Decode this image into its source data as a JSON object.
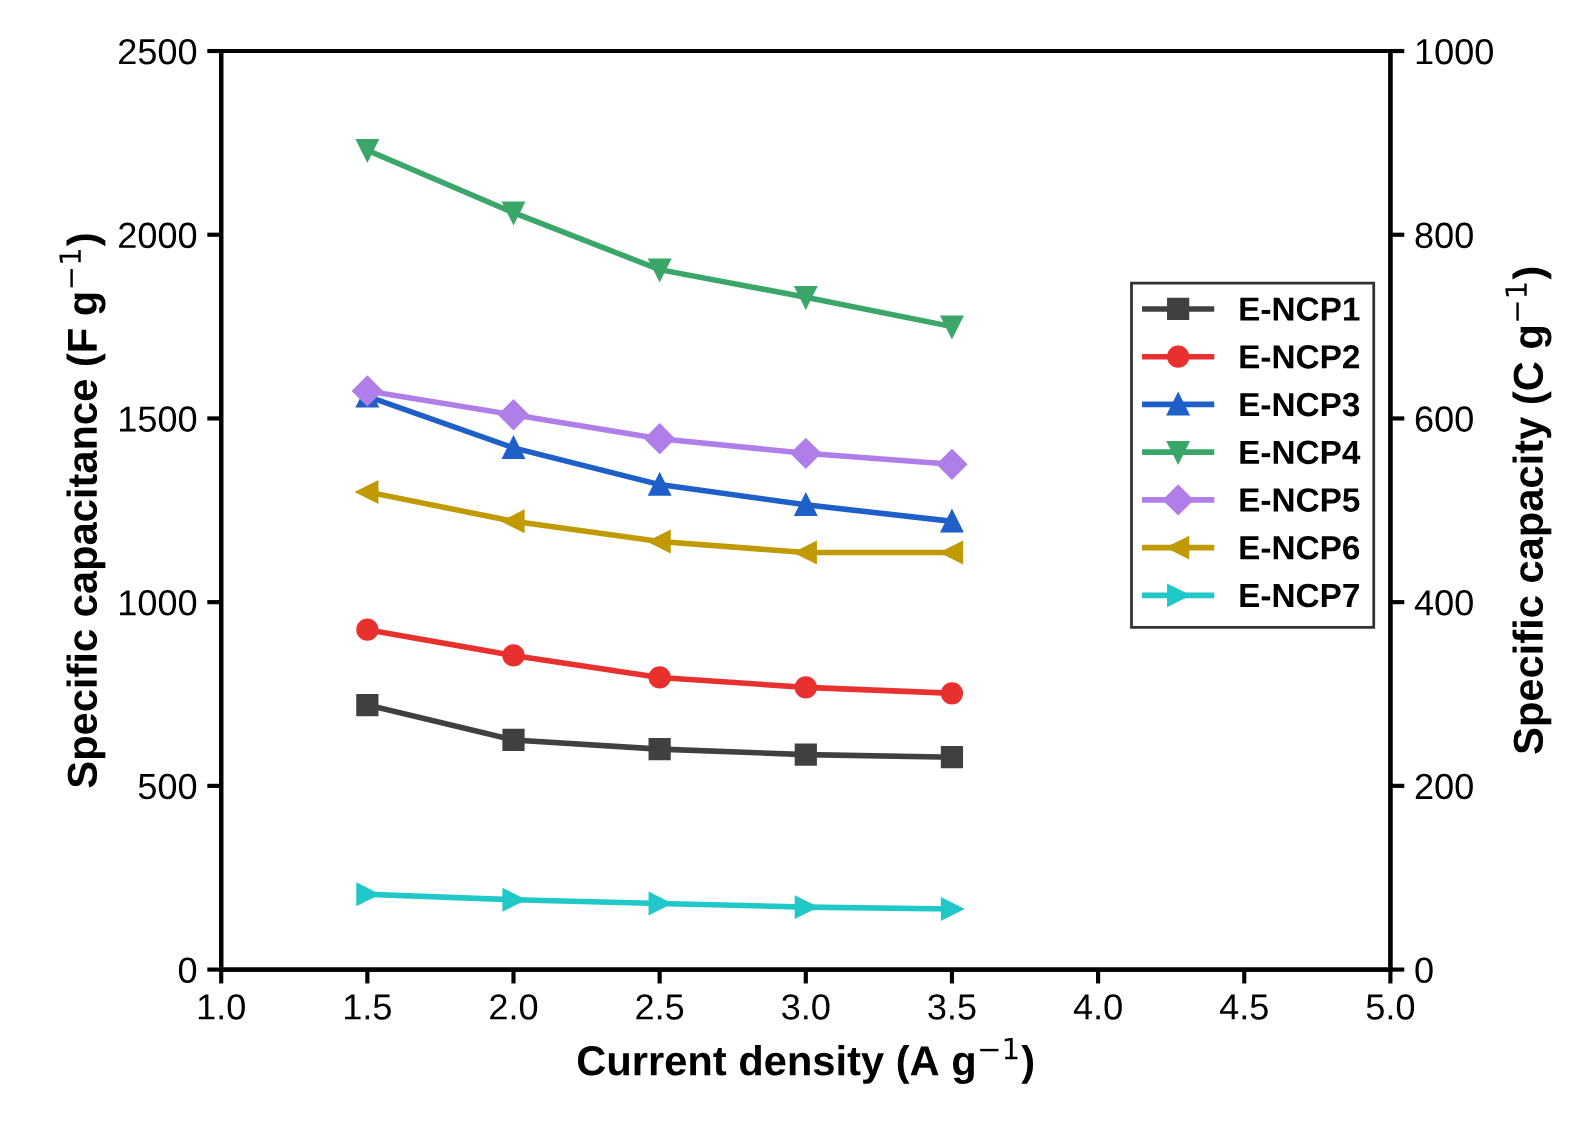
{
  "chart_data": {
    "type": "line",
    "xlabel": "Current density (A g$^{−1}$)",
    "ylabel": "Specific capacitance (F g$^{−1}$)",
    "y2label": "Specific capacity (C g$^{−1}$)",
    "x": [
      1.5,
      2.0,
      2.5,
      3.0,
      3.5
    ],
    "xlim": [
      1.0,
      5.0
    ],
    "xticks": [
      {
        "value": 1.0,
        "label": "1.0"
      },
      {
        "value": 1.5,
        "label": "1.5"
      },
      {
        "value": 2.0,
        "label": "2.0"
      },
      {
        "value": 2.5,
        "label": "2.5"
      },
      {
        "value": 3.0,
        "label": "3.0"
      },
      {
        "value": 3.5,
        "label": "3.5"
      },
      {
        "value": 4.0,
        "label": "4.0"
      },
      {
        "value": 4.5,
        "label": "4.5"
      },
      {
        "value": 5.0,
        "label": "5.0"
      }
    ],
    "ylim": [
      0,
      2500
    ],
    "yticks": [
      0,
      500,
      1000,
      1500,
      2000,
      2500
    ],
    "y2lim": [
      0,
      1000
    ],
    "y2ticks": [
      0,
      200,
      400,
      600,
      800,
      1000
    ],
    "legend": "right",
    "grid": false,
    "line_style": "solid",
    "series": [
      {
        "name": "E-NCP1",
        "color": "#404040",
        "marker": "square",
        "values": [
          720,
          625,
          600,
          585,
          578
        ]
      },
      {
        "name": "E-NCP2",
        "color": "#e8312f",
        "marker": "circle",
        "values": [
          925,
          855,
          795,
          768,
          752
        ]
      },
      {
        "name": "E-NCP3",
        "color": "#1f5fc8",
        "marker": "triangle",
        "values": [
          1560,
          1420,
          1320,
          1265,
          1220
        ]
      },
      {
        "name": "E-NCP4",
        "color": "#3aa66a",
        "marker": "triangle-down",
        "values": [
          2230,
          2060,
          1905,
          1830,
          1750
        ]
      },
      {
        "name": "E-NCP5",
        "color": "#b07ee8",
        "marker": "diamond",
        "values": [
          1575,
          1510,
          1445,
          1405,
          1375
        ]
      },
      {
        "name": "E-NCP6",
        "color": "#c09a00",
        "marker": "triangle-left",
        "values": [
          1300,
          1220,
          1165,
          1135,
          1135
        ]
      },
      {
        "name": "E-NCP7",
        "color": "#20c8c8",
        "marker": "triangle-right",
        "values": [
          205,
          190,
          180,
          170,
          165
        ]
      }
    ]
  }
}
